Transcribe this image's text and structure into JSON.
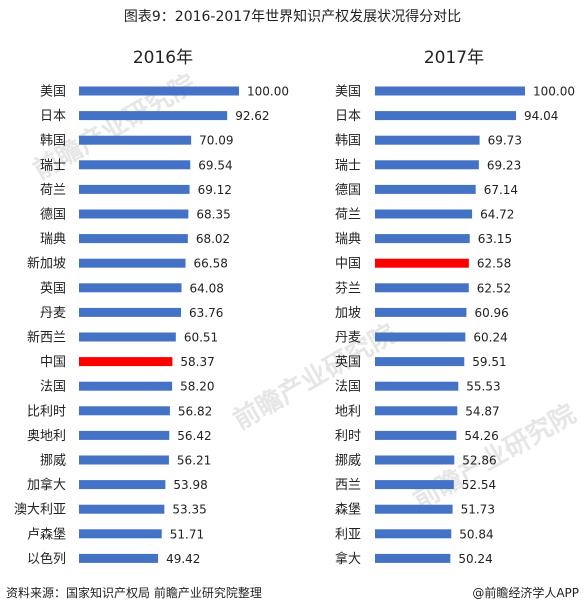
{
  "header": {
    "title": "图表9：2016-2017年世界知识产权发展状况得分对比"
  },
  "footer": {
    "source": "资料来源：国家知识产权局 前瞻产业研究院整理",
    "logo": "@前瞻经济学人APP"
  },
  "watermark": "前瞻产业研究院",
  "colors": {
    "bar": "#4472c4",
    "highlight": "#ff0000"
  },
  "chart_data": [
    {
      "type": "bar",
      "orientation": "horizontal",
      "title": "2016年",
      "highlight": "中国",
      "categories": [
        "美国",
        "日本",
        "韩国",
        "瑞士",
        "荷兰",
        "德国",
        "瑞典",
        "新加坡",
        "英国",
        "丹麦",
        "新西兰",
        "中国",
        "法国",
        "比利时",
        "奥地利",
        "挪威",
        "加拿大",
        "澳大利亚",
        "卢森堡",
        "以色列"
      ],
      "values": [
        100.0,
        92.62,
        70.09,
        69.54,
        69.12,
        68.35,
        68.02,
        66.58,
        64.08,
        63.76,
        60.51,
        58.37,
        58.2,
        56.82,
        56.42,
        56.21,
        53.98,
        53.35,
        51.71,
        49.42
      ],
      "labels": [
        "100.00",
        "92.62",
        "70.09",
        "69.54",
        "69.12",
        "68.35",
        "68.02",
        "66.58",
        "64.08",
        "63.76",
        "60.51",
        "58.37",
        "58.20",
        "56.82",
        "56.42",
        "56.21",
        "53.98",
        "53.35",
        "51.71",
        "49.42"
      ]
    },
    {
      "type": "bar",
      "orientation": "horizontal",
      "title": "2017年",
      "highlight": "中国",
      "categories": [
        "美国",
        "日本",
        "韩国",
        "瑞士",
        "德国",
        "荷兰",
        "瑞典",
        "中国",
        "芬兰",
        "加坡",
        "丹麦",
        "英国",
        "法国",
        "地利",
        "利时",
        "挪威",
        "西兰",
        "森堡",
        "利亚",
        "拿大"
      ],
      "values": [
        100.0,
        94.04,
        69.73,
        69.23,
        67.14,
        64.72,
        63.15,
        62.58,
        62.52,
        60.96,
        60.24,
        59.51,
        55.53,
        54.87,
        54.26,
        52.86,
        52.54,
        51.73,
        50.84,
        50.24
      ],
      "labels": [
        "100.00",
        "94.04",
        "69.73",
        "69.23",
        "67.14",
        "64.72",
        "63.15",
        "62.58",
        "62.52",
        "60.96",
        "60.24",
        "59.51",
        "55.53",
        "54.87",
        "54.26",
        "52.86",
        "52.54",
        "51.73",
        "50.84",
        "50.24"
      ]
    }
  ]
}
